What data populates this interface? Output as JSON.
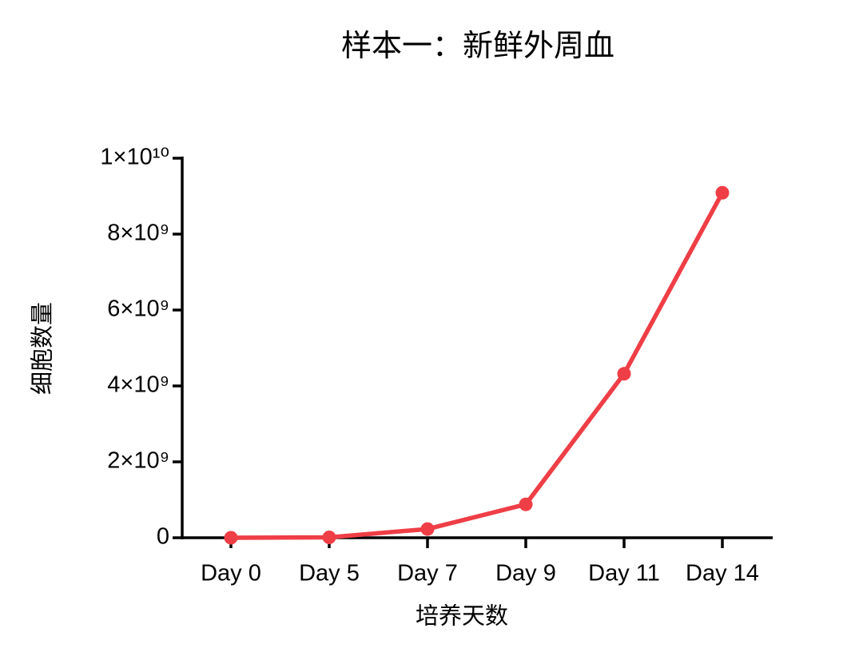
{
  "chart_data": {
    "type": "line",
    "title": "样本一：新鲜外周血",
    "x_label": "培养天数",
    "y_label": "细胞数量",
    "categories": [
      "Day 0",
      "Day 5",
      "Day 7",
      "Day 9",
      "Day 11",
      "Day 14"
    ],
    "values": [
      0,
      10000000,
      230000000,
      880000000,
      4320000000,
      9090000000
    ],
    "color": "#ef3e46",
    "ylim": [
      0,
      10000000000
    ],
    "yticks": [
      0,
      {
        "value": 2000000000,
        "label": "2×10⁹"
      },
      {
        "value": 4000000000,
        "label": "4×10⁹"
      },
      {
        "value": 6000000000,
        "label": "6×10⁹"
      },
      {
        "value": 8000000000,
        "label": "8×10⁹"
      },
      {
        "value": 10000000000,
        "label": "1×10¹⁰"
      }
    ],
    "grid": false
  }
}
